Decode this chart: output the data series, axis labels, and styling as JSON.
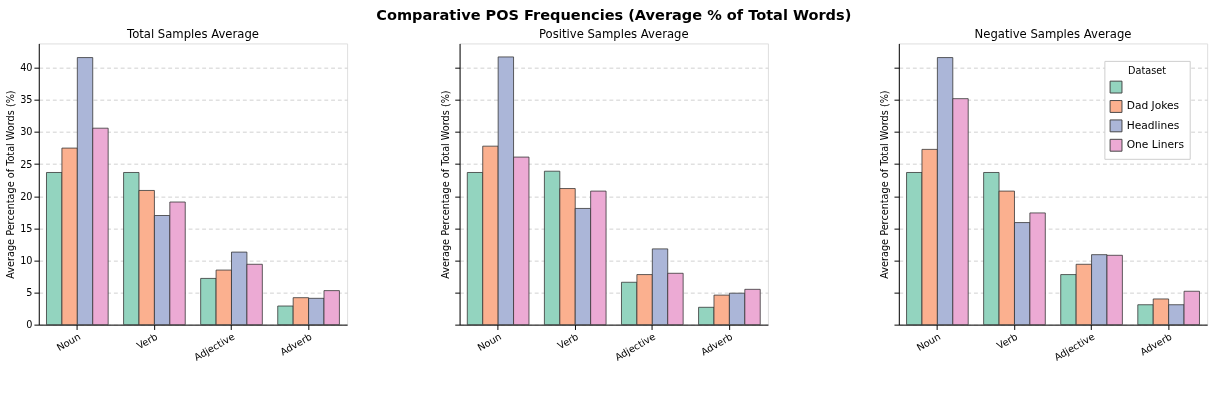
{
  "chart_data": [
    {
      "type": "bar",
      "subtitle": "Total Samples Average",
      "ylabel": "Average Percentage of Total Words (%)",
      "categories": [
        "Noun",
        "Verb",
        "Adjective",
        "Adverb"
      ],
      "series": [
        {
          "color": "#93d4bf",
          "values": [
            23.7,
            23.7,
            7.2,
            2.9
          ]
        },
        {
          "color": "#fbb08f",
          "values": [
            27.5,
            20.9,
            8.5,
            4.2
          ]
        },
        {
          "color": "#abb6d8",
          "values": [
            41.6,
            17.0,
            11.3,
            4.1
          ]
        },
        {
          "color": "#ecaad4",
          "values": [
            30.6,
            19.1,
            9.4,
            5.3
          ]
        }
      ],
      "ylim": [
        0,
        43.8
      ],
      "yticks": [
        0,
        5,
        10,
        15,
        20,
        25,
        30,
        35,
        40
      ],
      "grid": "y",
      "legend": false
    },
    {
      "type": "bar",
      "title": "Comparative POS Frequencies (Average % of Total Words)",
      "subtitle": "Positive Samples Average",
      "ylabel": "Average Percentage of Total Words (%)",
      "categories": [
        "Noun",
        "Verb",
        "Adjective",
        "Adverb"
      ],
      "series": [
        {
          "color": "#93d4bf",
          "values": [
            23.7,
            23.9,
            6.6,
            2.7
          ]
        },
        {
          "color": "#fbb08f",
          "values": [
            27.8,
            21.2,
            7.8,
            4.6
          ]
        },
        {
          "color": "#abb6d8",
          "values": [
            41.7,
            18.1,
            11.8,
            4.9
          ]
        },
        {
          "color": "#ecaad4",
          "values": [
            26.1,
            20.8,
            8.0,
            5.5
          ]
        }
      ],
      "ylim": [
        0,
        43.8
      ],
      "yticks": [
        0,
        5,
        10,
        15,
        20,
        25,
        30,
        35,
        40
      ],
      "grid": "y",
      "tick_labels": "x",
      "legend": false
    },
    {
      "type": "bar",
      "subtitle": "Negative Samples Average",
      "ylabel": "Average Percentage of Total Words (%)",
      "categories": [
        "Noun",
        "Verb",
        "Adjective",
        "Adverb"
      ],
      "series": [
        {
          "name": null,
          "color": "#93d4bf",
          "values": [
            23.7,
            23.7,
            7.8,
            3.1
          ]
        },
        {
          "name": "Dad Jokes",
          "color": "#fbb08f",
          "values": [
            27.3,
            20.8,
            9.4,
            4.0
          ]
        },
        {
          "name": "Headlines",
          "color": "#abb6d8",
          "values": [
            41.6,
            15.9,
            10.9,
            3.1
          ]
        },
        {
          "name": "One Liners",
          "color": "#ecaad4",
          "values": [
            35.2,
            17.4,
            10.8,
            5.2
          ]
        }
      ],
      "ylim": [
        0,
        43.8
      ],
      "yticks": [
        0,
        5,
        10,
        15,
        20,
        25,
        30,
        35,
        40
      ],
      "grid": "y",
      "tick_labels": "x",
      "legend": "top right",
      "legend_title": "Dataset"
    }
  ]
}
